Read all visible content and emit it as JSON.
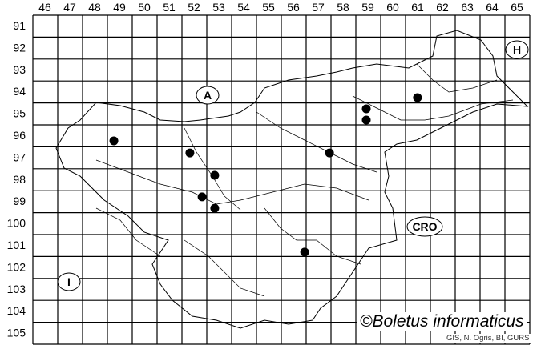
{
  "map": {
    "columns": [
      "46",
      "47",
      "48",
      "49",
      "50",
      "51",
      "52",
      "53",
      "54",
      "55",
      "56",
      "57",
      "58",
      "59",
      "60",
      "61",
      "62",
      "63",
      "64",
      "65"
    ],
    "rows": [
      "91",
      "92",
      "93",
      "94",
      "95",
      "96",
      "97",
      "98",
      "99",
      "100",
      "101",
      "102",
      "103",
      "104",
      "105"
    ],
    "country_labels": [
      {
        "id": "austria",
        "text": "A"
      },
      {
        "id": "hungary",
        "text": "H"
      },
      {
        "id": "croatia",
        "text": "CRO"
      },
      {
        "id": "italy",
        "text": "I"
      }
    ],
    "records": [
      {
        "x": 49.26,
        "y": 96.73
      },
      {
        "x": 52.32,
        "y": 97.28
      },
      {
        "x": 53.32,
        "y": 98.3
      },
      {
        "x": 52.81,
        "y": 99.28
      },
      {
        "x": 53.32,
        "y": 99.8
      },
      {
        "x": 56.94,
        "y": 101.8
      },
      {
        "x": 57.94,
        "y": 97.28
      },
      {
        "x": 59.42,
        "y": 95.27
      },
      {
        "x": 59.42,
        "y": 95.78
      },
      {
        "x": 61.48,
        "y": 94.76
      }
    ],
    "record_color": "#000000",
    "credit": "©Boletus informaticus",
    "source": "GIS, N. Ogris, BI, GURS"
  }
}
